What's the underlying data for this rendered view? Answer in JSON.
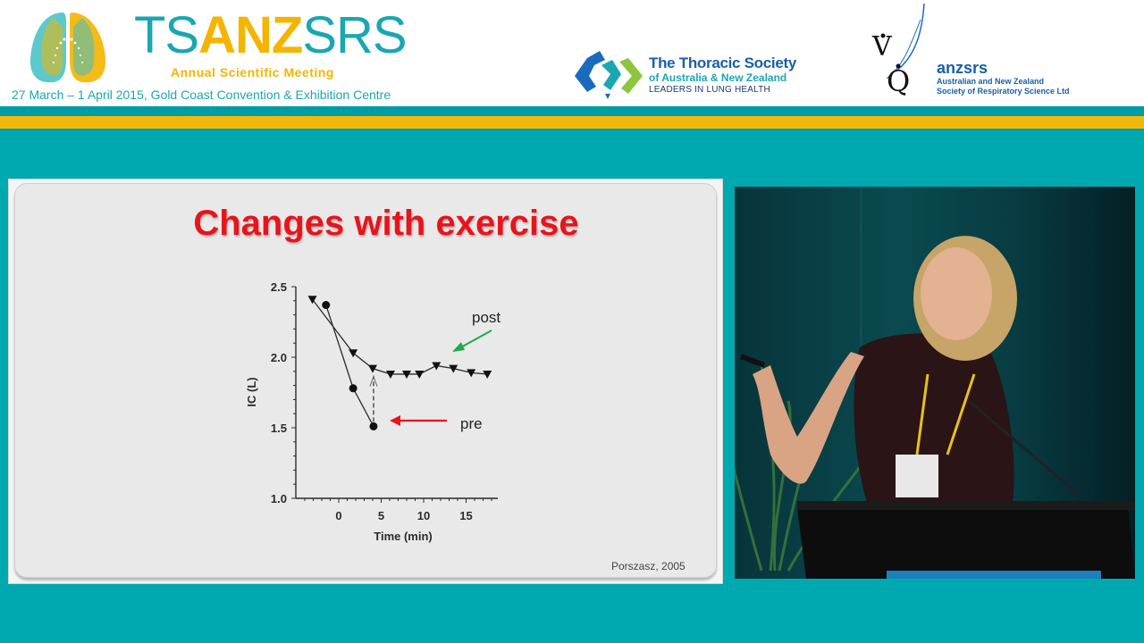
{
  "header": {
    "brand_part1": "TS",
    "brand_part2": "ANZ",
    "brand_part3": "SRS",
    "meeting": "Annual Scientific Meeting",
    "dates_venue": "27 March – 1 April 2015, Gold Coast Convention & Exhibition Centre",
    "tsanz": {
      "line1": "The Thoracic Society",
      "line2": "of Australia & New Zealand",
      "line3": "LEADERS IN LUNG HEALTH"
    },
    "anzsrs": {
      "logo_text": "V̇Q̇",
      "line1": "anzsrs",
      "line2": "Australian and New Zealand",
      "line3": "Society of Respiratory Science Ltd"
    }
  },
  "colors": {
    "background_teal": "#00a8b0",
    "brand_teal": "#1aa7b1",
    "brand_gold": "#f4b400",
    "title_red": "#e8141b",
    "arrow_green": "#1faa4a",
    "arrow_red": "#e8141b"
  },
  "slide": {
    "title": "Changes with exercise",
    "citation": "Porszasz, 2005"
  },
  "chart_data": {
    "type": "line",
    "title": "Changes with exercise",
    "xlabel": "Time (min)",
    "ylabel": "IC (L)",
    "xlim": [
      -4,
      19
    ],
    "ylim": [
      1.0,
      2.5
    ],
    "xticks": [
      "0",
      "5",
      "10",
      "15"
    ],
    "yticks": [
      "1.0",
      "1.5",
      "2.0",
      "2.5"
    ],
    "grid": false,
    "series": [
      {
        "name": "post",
        "marker": "triangle-down",
        "x": [
          -3.1,
          1.7,
          4.0,
          6.1,
          8.0,
          9.5,
          11.5,
          13.5,
          15.6,
          17.5
        ],
        "y": [
          2.41,
          2.03,
          1.92,
          1.88,
          1.88,
          1.88,
          1.94,
          1.92,
          1.89,
          1.88
        ]
      },
      {
        "name": "pre",
        "marker": "circle",
        "x": [
          -1.5,
          1.7,
          4.1
        ],
        "y": [
          2.37,
          1.78,
          1.51
        ]
      }
    ],
    "annotations": [
      {
        "text": "post",
        "arrow_color": "#1faa4a"
      },
      {
        "text": "pre",
        "arrow_color": "#e8141b"
      },
      {
        "text": "dashed arrow from pre end (1.51 L) up to post (1.92 L) at ~4 min"
      }
    ]
  },
  "video": {
    "description": "Live camera feed of presenter at lectern"
  }
}
